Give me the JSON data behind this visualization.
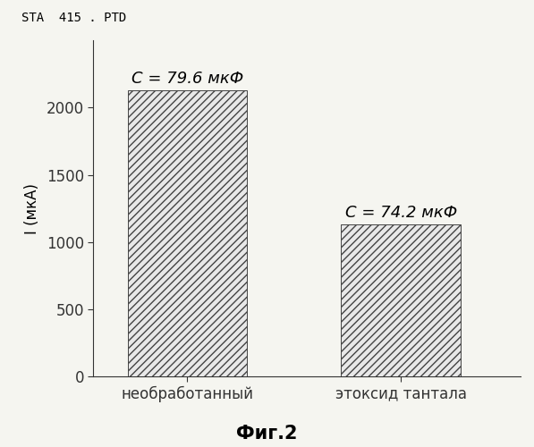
{
  "categories": [
    "необработанный",
    "этоксид тантала"
  ],
  "values": [
    2130,
    1130
  ],
  "bar_labels": [
    "C = 79.6 мкФ",
    "C = 74.2 мкФ"
  ],
  "ylabel": "I (мкА)",
  "fig_caption": "Фиг.2",
  "header": "STA  415 . PTD",
  "ylim": [
    0,
    2500
  ],
  "yticks": [
    0,
    500,
    1000,
    1500,
    2000
  ],
  "hatch": "////",
  "background_color": "#f5f5f0",
  "bar_width": 0.28,
  "label_fontsize": 12,
  "tick_fontsize": 12,
  "annotation_fontsize": 13,
  "caption_fontsize": 15,
  "header_fontsize": 10,
  "x_positions": [
    0.22,
    0.72
  ],
  "xlim": [
    0.0,
    1.0
  ]
}
